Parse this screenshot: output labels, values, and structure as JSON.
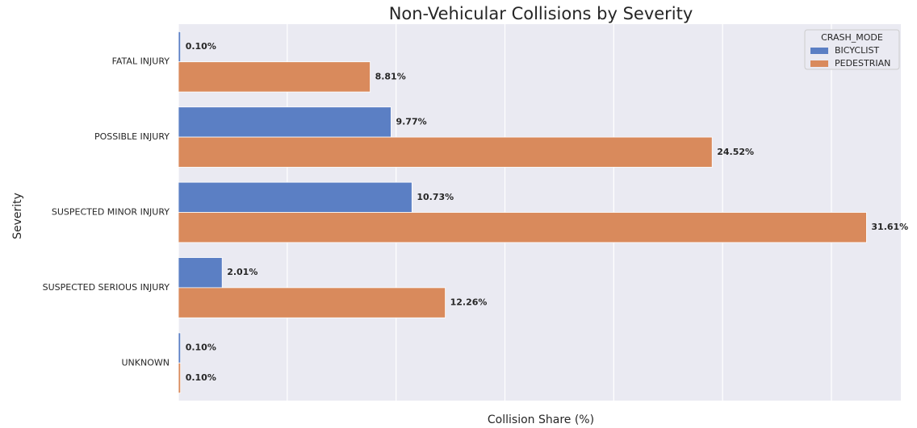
{
  "chart_data": {
    "type": "barh",
    "title": "Non-Vehicular Collisions by Severity",
    "xlabel": "Collision Share (%)",
    "ylabel": "Severity",
    "categories": [
      "FATAL INJURY",
      "POSSIBLE INJURY",
      "SUSPECTED MINOR INJURY",
      "SUSPECTED SERIOUS INJURY",
      "UNKNOWN"
    ],
    "series": [
      {
        "name": "BICYCLIST",
        "color": "#5b7fc4",
        "values": [
          0.1,
          9.77,
          10.73,
          2.01,
          0.1
        ],
        "value_labels": [
          "0.10%",
          "9.77%",
          "10.73%",
          "2.01%",
          "0.10%"
        ]
      },
      {
        "name": "PEDESTRIAN",
        "color": "#d98a5c",
        "values": [
          8.81,
          24.52,
          31.61,
          12.26,
          0.1
        ],
        "value_labels": [
          "8.81%",
          "24.52%",
          "31.61%",
          "12.26%",
          "0.10%"
        ]
      }
    ],
    "legend_title": "CRASH_MODE",
    "legend": "upper right",
    "xlim": [
      0,
      33.19
    ],
    "xticks": [
      0,
      5,
      10,
      15,
      20,
      25,
      30
    ],
    "grid": true
  }
}
